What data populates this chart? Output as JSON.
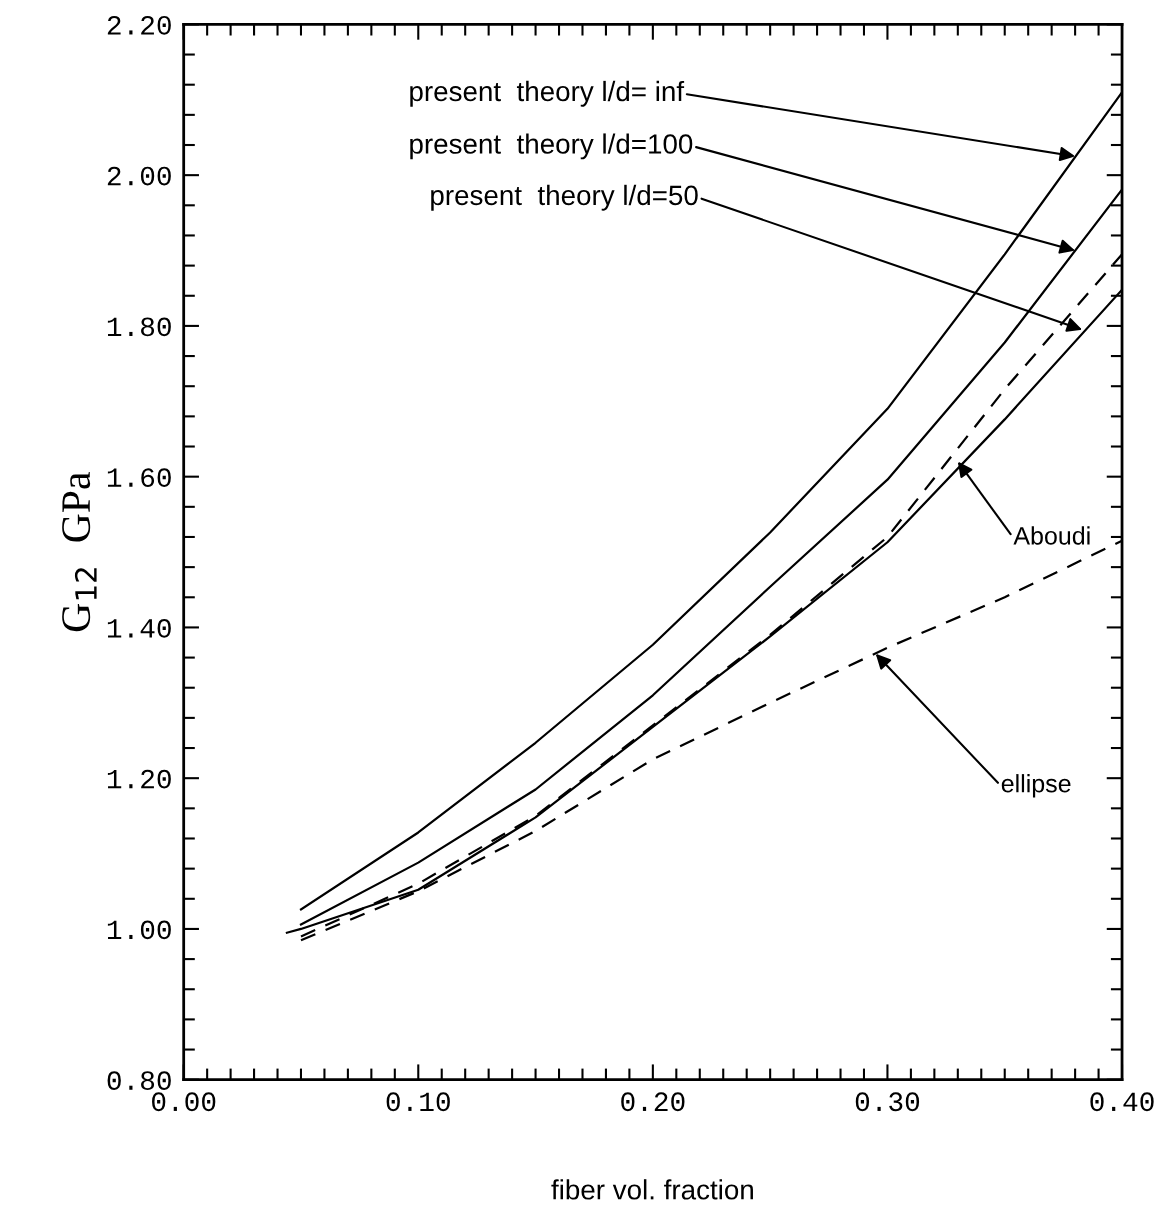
{
  "chart_data": {
    "type": "line",
    "xlabel": "fiber vol. fraction",
    "ylabel": "G$_{12}$  GPa",
    "xlim": [
      0.0,
      0.4
    ],
    "ylim": [
      0.8,
      2.2
    ],
    "xticks": [
      {
        "value": 0.0,
        "label": "0.00"
      },
      {
        "value": 0.1,
        "label": "0.10"
      },
      {
        "value": 0.2,
        "label": "0.20"
      },
      {
        "value": 0.3,
        "label": "0.30"
      },
      {
        "value": 0.4,
        "label": "0.40"
      }
    ],
    "yticks": [
      {
        "value": 0.8,
        "label": "0.80"
      },
      {
        "value": 1.0,
        "label": "1.00"
      },
      {
        "value": 1.2,
        "label": "1.20"
      },
      {
        "value": 1.4,
        "label": "1.40"
      },
      {
        "value": 1.6,
        "label": "1.60"
      },
      {
        "value": 1.8,
        "label": "1.80"
      },
      {
        "value": 2.0,
        "label": "2.00"
      },
      {
        "value": 2.2,
        "label": "2.20"
      }
    ],
    "grid": false,
    "legend": false,
    "marker": "none",
    "series": [
      {
        "color": "#000000",
        "line_style": "solid",
        "x": [
          0.05,
          0.1,
          0.15,
          0.2,
          0.25,
          0.3,
          0.35,
          0.4
        ],
        "values": [
          1.026,
          1.128,
          1.247,
          1.377,
          1.526,
          1.69,
          1.895,
          2.11
        ]
      },
      {
        "color": "#000000",
        "line_style": "solid",
        "x": [
          0.05,
          0.1,
          0.15,
          0.2,
          0.25,
          0.3,
          0.35,
          0.4
        ],
        "values": [
          1.006,
          1.088,
          1.185,
          1.31,
          1.454,
          1.596,
          1.778,
          1.981
        ]
      },
      {
        "color": "#000000",
        "line_style": "solid",
        "x": [
          0.044,
          0.05,
          0.1,
          0.15,
          0.2,
          0.25,
          0.3,
          0.35,
          0.4
        ],
        "values": [
          0.995,
          1.0,
          1.052,
          1.148,
          1.268,
          1.388,
          1.513,
          1.676,
          1.848
        ]
      },
      {
        "color": "#000000",
        "line_style": "dashed",
        "x": [
          0.05,
          0.1,
          0.15,
          0.2,
          0.25,
          0.3,
          0.35,
          0.4
        ],
        "values": [
          0.99,
          1.06,
          1.15,
          1.27,
          1.39,
          1.52,
          1.716,
          1.895
        ]
      },
      {
        "color": "#000000",
        "line_style": "dashed",
        "x": [
          0.05,
          0.1,
          0.15,
          0.2,
          0.25,
          0.3,
          0.35,
          0.4
        ],
        "values": [
          0.985,
          1.05,
          1.13,
          1.225,
          1.3,
          1.373,
          1.44,
          1.515
        ]
      }
    ],
    "annotations": [
      {
        "text": "present  theory l/d= inf",
        "x": 0.38,
        "y": 2.025
      },
      {
        "text": "present  theory l/d=100",
        "x": 0.38,
        "y": 1.9
      },
      {
        "text": "present  theory l/d=50",
        "x": 0.383,
        "y": 1.795
      },
      {
        "text": "Aboudi",
        "x": 0.33,
        "y": 1.62
      },
      {
        "text": "ellipse",
        "x": 0.295,
        "y": 1.365
      }
    ]
  }
}
